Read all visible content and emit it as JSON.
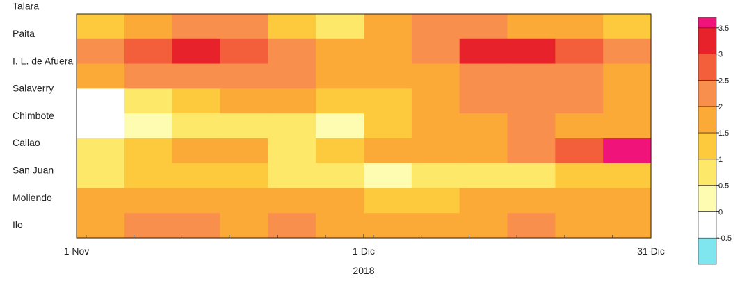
{
  "chart_data": {
    "type": "heatmap",
    "title": "",
    "xlabel": "2018",
    "ylabel": "",
    "x_ticks": [
      "1 Nov",
      "1 Dic",
      "31 Dic"
    ],
    "x_range": [
      "2018-11-01",
      "2018-12-31"
    ],
    "stations": [
      "Talara",
      "Paita",
      "I. L. de Afuera",
      "Salaverry",
      "Chimbote",
      "Callao",
      "San Juan",
      "Mollendo",
      "Ilo"
    ],
    "colorbar": {
      "levels": [
        -0.5,
        0,
        0.5,
        1,
        1.5,
        2,
        2.5,
        3,
        3.5
      ],
      "tick_labels": [
        "-0.5",
        "0",
        "0.5",
        "1",
        "1.5",
        "2",
        "2.5",
        "3",
        "3.5"
      ],
      "colors": [
        "#7fe6f0",
        "#ffffff",
        "#fefcb0",
        "#fde86a",
        "#fdca3d",
        "#fbaa37",
        "#f98f4d",
        "#f35f3b",
        "#e8222a",
        "#f0147a"
      ]
    },
    "values": [
      [
        1.0,
        1.5,
        2.0,
        2.0,
        1.0,
        0.5,
        1.5,
        2.0,
        2.0,
        1.5,
        1.5,
        1.0
      ],
      [
        2.0,
        2.5,
        3.0,
        2.5,
        2.0,
        1.5,
        1.5,
        2.0,
        3.0,
        3.0,
        2.5,
        2.0
      ],
      [
        1.5,
        2.0,
        2.0,
        2.0,
        2.0,
        1.5,
        1.5,
        1.5,
        2.0,
        2.0,
        2.0,
        1.5
      ],
      [
        -0.5,
        0.5,
        1.0,
        1.5,
        1.5,
        1.0,
        1.0,
        1.5,
        2.0,
        2.0,
        2.0,
        1.5
      ],
      [
        -0.5,
        0.0,
        0.5,
        0.5,
        0.5,
        0.0,
        1.0,
        1.5,
        1.5,
        2.0,
        1.5,
        1.5
      ],
      [
        0.5,
        1.0,
        1.5,
        1.5,
        0.5,
        1.0,
        1.5,
        1.5,
        1.5,
        2.0,
        2.5,
        3.5
      ],
      [
        0.5,
        1.0,
        1.0,
        1.0,
        0.5,
        0.5,
        0.0,
        0.5,
        0.5,
        0.5,
        1.0,
        1.0
      ],
      [
        1.5,
        1.5,
        1.5,
        1.5,
        1.5,
        1.5,
        1.0,
        1.0,
        1.5,
        1.5,
        1.5,
        1.5
      ],
      [
        1.5,
        2.0,
        2.0,
        1.5,
        2.0,
        1.5,
        1.5,
        1.5,
        1.5,
        2.0,
        1.5,
        1.5
      ]
    ]
  }
}
